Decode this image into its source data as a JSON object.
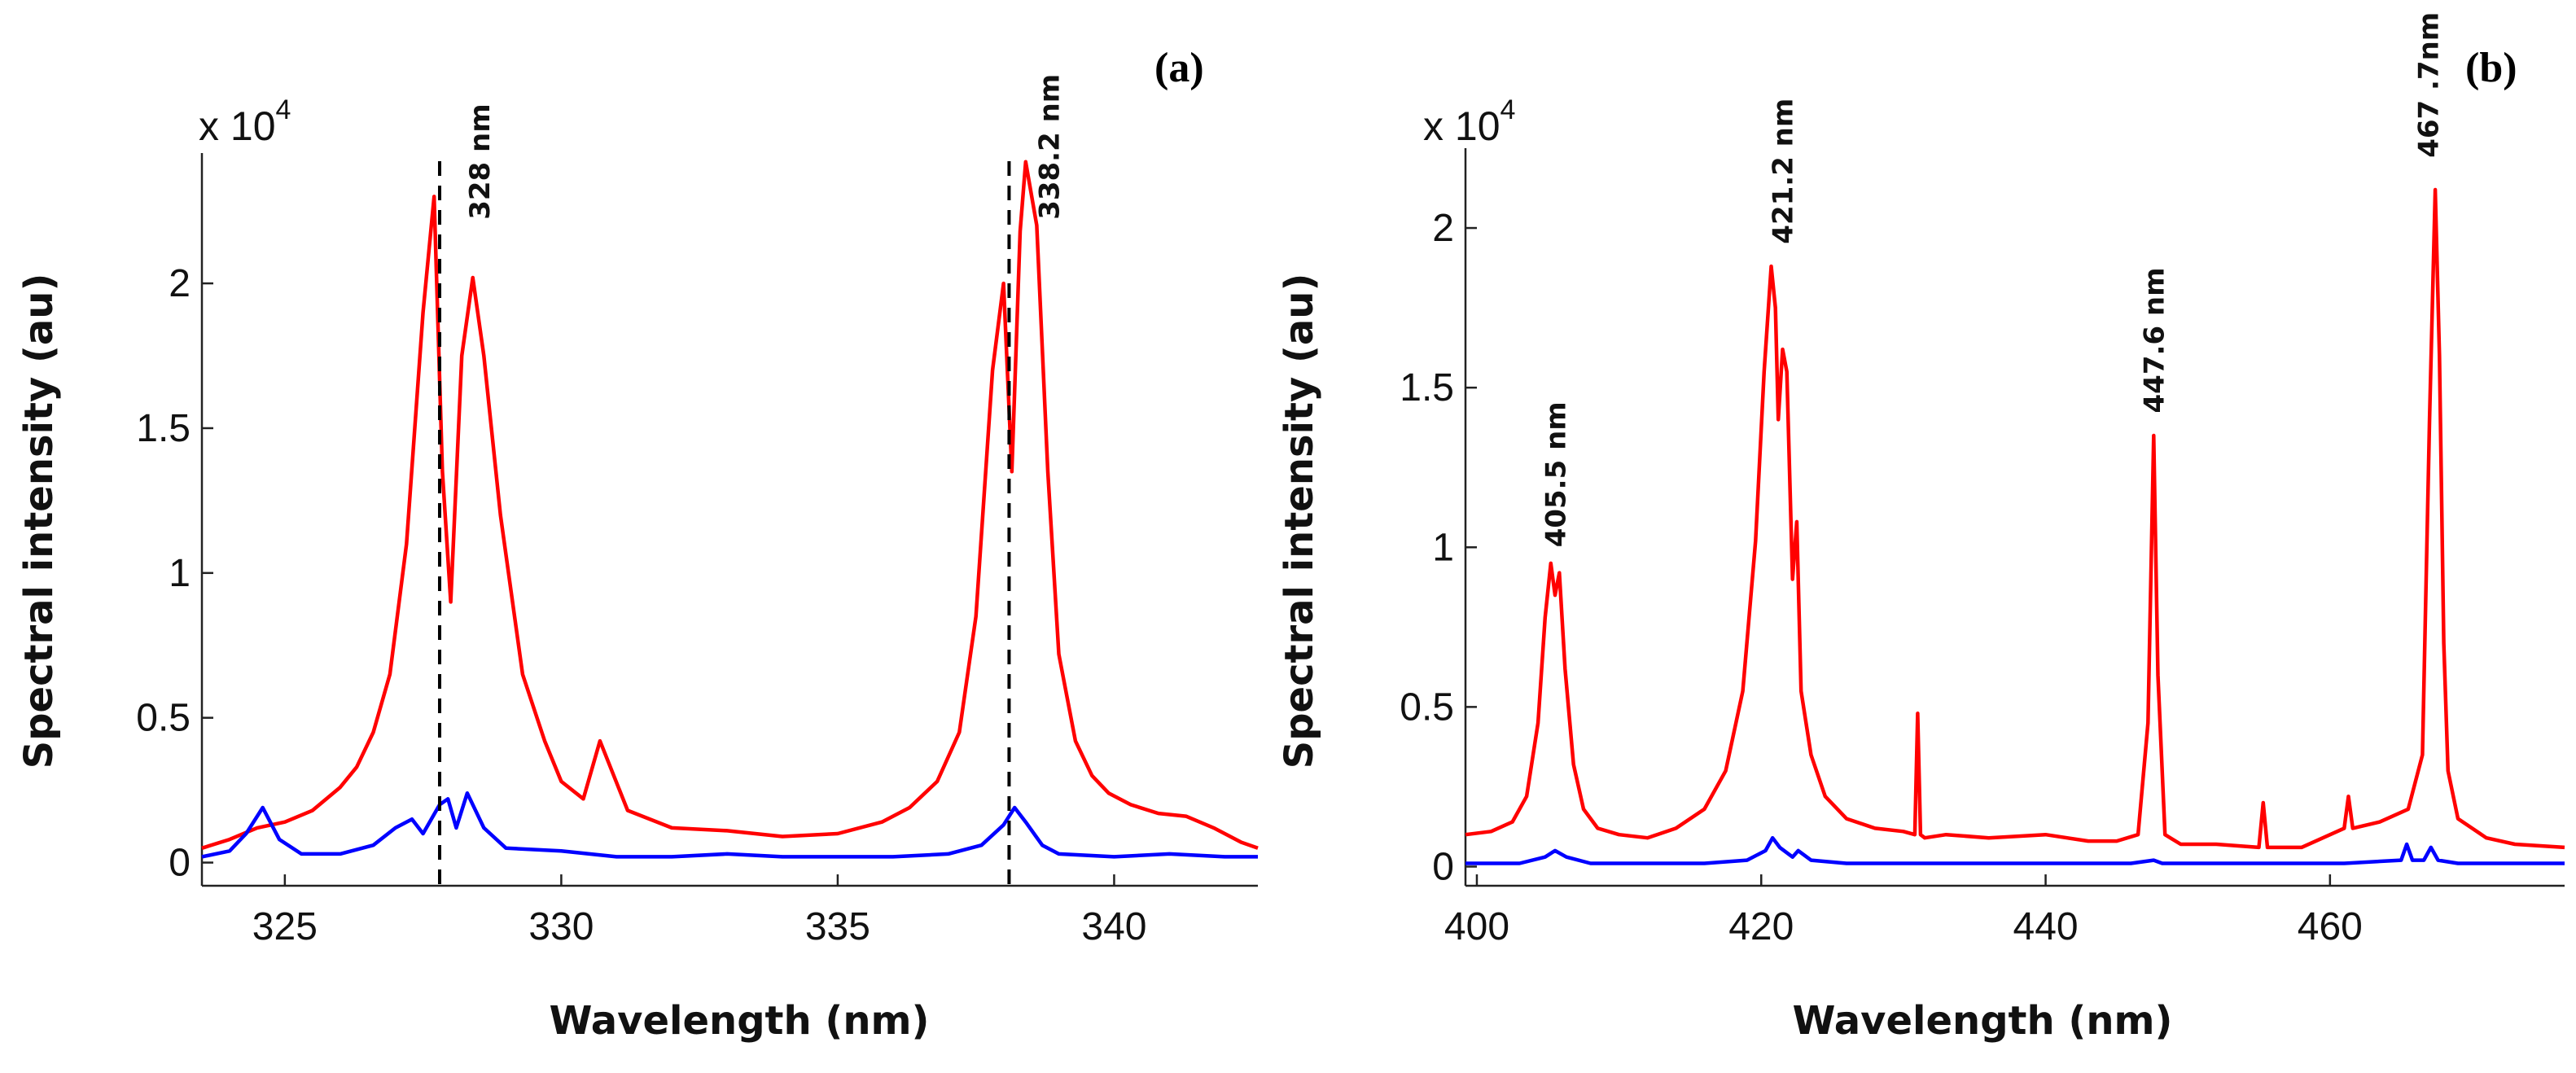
{
  "chart_data": [
    {
      "type": "line",
      "panel_label": "(a)",
      "scale_label": "x 10",
      "scale_exp": "4",
      "xlabel": "Wavelength (nm)",
      "ylabel": "Spectral intensity (au)",
      "xlim": [
        323.5,
        342.6
      ],
      "ylim": [
        -0.08,
        2.45
      ],
      "xticks": [
        325,
        330,
        335,
        340
      ],
      "xtick_labels": [
        "325",
        "330",
        "335",
        "340"
      ],
      "yticks": [
        0,
        0.5,
        1,
        1.5,
        2
      ],
      "ytick_labels": [
        "0",
        "0.5",
        "1",
        "1.5",
        "2"
      ],
      "vlines": [
        327.8,
        338.1
      ],
      "annotations": [
        {
          "text": "328 nm",
          "x": 328.7,
          "y": 2.22
        },
        {
          "text": "338.2 nm",
          "x": 339.0,
          "y": 2.22
        }
      ],
      "series": [
        {
          "name": "red",
          "color": "#ff0000",
          "x": [
            323.5,
            324.0,
            324.5,
            325.0,
            325.5,
            326.0,
            326.3,
            326.6,
            326.9,
            327.2,
            327.5,
            327.7,
            327.85,
            328.0,
            328.2,
            328.4,
            328.6,
            328.9,
            329.3,
            329.7,
            330.0,
            330.4,
            330.7,
            331.2,
            332.0,
            333.0,
            334.0,
            335.0,
            335.8,
            336.3,
            336.8,
            337.2,
            337.5,
            337.8,
            338.0,
            338.15,
            338.3,
            338.4,
            338.6,
            338.8,
            339.0,
            339.3,
            339.6,
            339.9,
            340.3,
            340.8,
            341.3,
            341.8,
            342.3,
            342.6
          ],
          "y": [
            0.05,
            0.08,
            0.12,
            0.14,
            0.18,
            0.26,
            0.33,
            0.45,
            0.65,
            1.1,
            1.9,
            2.3,
            1.35,
            0.9,
            1.75,
            2.02,
            1.75,
            1.2,
            0.65,
            0.42,
            0.28,
            0.22,
            0.42,
            0.18,
            0.12,
            0.11,
            0.09,
            0.1,
            0.14,
            0.19,
            0.28,
            0.45,
            0.85,
            1.7,
            2.0,
            1.35,
            2.18,
            2.42,
            2.2,
            1.35,
            0.72,
            0.42,
            0.3,
            0.24,
            0.2,
            0.17,
            0.16,
            0.12,
            0.07,
            0.05
          ]
        },
        {
          "name": "blue",
          "color": "#0000ff",
          "x": [
            323.5,
            324.0,
            324.3,
            324.6,
            324.9,
            325.3,
            326.0,
            326.6,
            327.0,
            327.3,
            327.5,
            327.8,
            327.95,
            328.1,
            328.3,
            328.6,
            329.0,
            330.0,
            331.0,
            332.0,
            333.0,
            334.0,
            335.0,
            336.0,
            337.0,
            337.6,
            338.0,
            338.2,
            338.4,
            338.7,
            339.0,
            340.0,
            341.0,
            342.0,
            342.6
          ],
          "y": [
            0.02,
            0.04,
            0.1,
            0.19,
            0.08,
            0.03,
            0.03,
            0.06,
            0.12,
            0.15,
            0.1,
            0.2,
            0.22,
            0.12,
            0.24,
            0.12,
            0.05,
            0.04,
            0.02,
            0.02,
            0.03,
            0.02,
            0.02,
            0.02,
            0.03,
            0.06,
            0.13,
            0.19,
            0.14,
            0.06,
            0.03,
            0.02,
            0.03,
            0.02,
            0.02
          ]
        }
      ]
    },
    {
      "type": "line",
      "panel_label": "(b)",
      "scale_label": "x 10",
      "scale_exp": "4",
      "xlabel": "Wavelength (nm)",
      "ylabel": "Spectral intensity (au)",
      "xlim": [
        399.2,
        476.5
      ],
      "ylim": [
        -0.06,
        2.25
      ],
      "xticks": [
        400,
        420,
        440,
        460
      ],
      "xtick_labels": [
        "400",
        "420",
        "440",
        "460"
      ],
      "yticks": [
        0,
        0.5,
        1,
        1.5,
        2
      ],
      "ytick_labels": [
        "0",
        "0.5",
        "1",
        "1.5",
        "2"
      ],
      "annotations": [
        {
          "text": "405.5 nm",
          "x": 406.2,
          "y": 1.0
        },
        {
          "text": "421.2  nm",
          "x": 422.2,
          "y": 1.95
        },
        {
          "text": "447.6 nm",
          "x": 448.3,
          "y": 1.42
        },
        {
          "text": "467 .7nm",
          "x": 467.6,
          "y": 2.22
        }
      ],
      "series": [
        {
          "name": "red",
          "color": "#ff0000",
          "x": [
            399.2,
            401.0,
            402.5,
            403.5,
            404.3,
            404.8,
            405.2,
            405.5,
            405.8,
            406.2,
            406.8,
            407.5,
            408.5,
            410.0,
            412.0,
            414.0,
            416.0,
            417.5,
            418.7,
            419.6,
            420.2,
            420.7,
            421.0,
            421.2,
            421.5,
            421.8,
            422.2,
            422.5,
            422.8,
            423.5,
            424.5,
            426.0,
            428.0,
            430.0,
            430.8,
            431.0,
            431.2,
            431.5,
            433.0,
            436.0,
            440.0,
            443.0,
            445.0,
            446.5,
            447.2,
            447.6,
            447.9,
            448.4,
            449.5,
            452.0,
            455.0,
            455.3,
            455.6,
            458.0,
            461.0,
            461.3,
            461.6,
            463.5,
            465.5,
            466.5,
            467.0,
            467.4,
            467.7,
            468.0,
            468.3,
            469.0,
            471.0,
            473.0,
            476.5
          ],
          "y": [
            0.1,
            0.11,
            0.14,
            0.22,
            0.45,
            0.78,
            0.95,
            0.85,
            0.92,
            0.62,
            0.32,
            0.18,
            0.12,
            0.1,
            0.09,
            0.12,
            0.18,
            0.3,
            0.55,
            1.02,
            1.55,
            1.88,
            1.75,
            1.4,
            1.62,
            1.55,
            0.9,
            1.08,
            0.55,
            0.35,
            0.22,
            0.15,
            0.12,
            0.11,
            0.1,
            0.48,
            0.1,
            0.09,
            0.1,
            0.09,
            0.1,
            0.08,
            0.08,
            0.1,
            0.45,
            1.35,
            0.6,
            0.1,
            0.07,
            0.07,
            0.06,
            0.2,
            0.06,
            0.06,
            0.12,
            0.22,
            0.12,
            0.14,
            0.18,
            0.35,
            1.4,
            2.12,
            1.6,
            0.7,
            0.3,
            0.15,
            0.09,
            0.07,
            0.06
          ]
        },
        {
          "name": "blue",
          "color": "#0000ff",
          "x": [
            399.2,
            403.0,
            404.8,
            405.5,
            406.3,
            408.0,
            412.0,
            416.0,
            419.0,
            420.3,
            420.8,
            421.3,
            422.2,
            422.6,
            423.5,
            426.0,
            430.0,
            436.0,
            440.0,
            446.0,
            447.6,
            448.2,
            452.0,
            458.0,
            461.0,
            465.0,
            465.4,
            465.8,
            466.6,
            467.1,
            467.6,
            469.0,
            476.5
          ],
          "y": [
            0.01,
            0.01,
            0.03,
            0.05,
            0.03,
            0.01,
            0.01,
            0.01,
            0.02,
            0.05,
            0.09,
            0.06,
            0.03,
            0.05,
            0.02,
            0.01,
            0.01,
            0.01,
            0.01,
            0.01,
            0.02,
            0.01,
            0.01,
            0.01,
            0.01,
            0.02,
            0.07,
            0.02,
            0.02,
            0.06,
            0.02,
            0.01,
            0.01
          ]
        }
      ]
    }
  ]
}
